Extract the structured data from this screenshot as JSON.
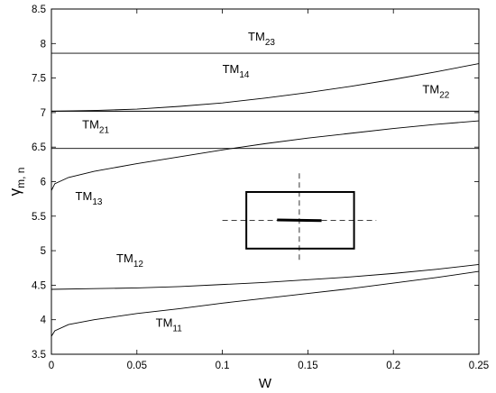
{
  "chart_data": {
    "type": "line",
    "xlabel": "W",
    "ylabel": "γ",
    "ylabel_sub": "m, n",
    "xlim": [
      0,
      0.25
    ],
    "ylim": [
      3.5,
      8.5
    ],
    "xticks": [
      0,
      0.05,
      0.1,
      0.15,
      0.2,
      0.25
    ],
    "xtick_labels": [
      "0",
      "0.05",
      "0.1",
      "0.15",
      "0.2",
      "0.25"
    ],
    "yticks": [
      3.5,
      4,
      4.5,
      5,
      5.5,
      6,
      6.5,
      7,
      7.5,
      8,
      8.5
    ],
    "ytick_labels": [
      "3.5",
      "4",
      "4.5",
      "5",
      "5.5",
      "6",
      "6.5",
      "7",
      "7.5",
      "8",
      "8.5"
    ],
    "grid": false,
    "legend": "none",
    "series": [
      {
        "x": [
          0,
          0.002,
          0.01,
          0.025,
          0.05,
          0.075,
          0.1,
          0.125,
          0.15,
          0.175,
          0.2,
          0.225,
          0.25
        ],
        "y": [
          3.76,
          3.84,
          3.93,
          4.0,
          4.09,
          4.16,
          4.24,
          4.31,
          4.38,
          4.45,
          4.53,
          4.61,
          4.7
        ]
      },
      {
        "x": [
          0,
          0.025,
          0.05,
          0.075,
          0.1,
          0.125,
          0.15,
          0.175,
          0.2,
          0.225,
          0.25
        ],
        "y": [
          4.44,
          4.45,
          4.46,
          4.48,
          4.51,
          4.54,
          4.58,
          4.62,
          4.67,
          4.73,
          4.8
        ]
      },
      {
        "x": [
          0,
          0.002,
          0.01,
          0.025,
          0.05,
          0.075,
          0.1,
          0.125,
          0.15,
          0.175,
          0.2,
          0.225,
          0.25
        ],
        "y": [
          5.87,
          5.97,
          6.06,
          6.15,
          6.26,
          6.36,
          6.46,
          6.55,
          6.63,
          6.7,
          6.77,
          6.83,
          6.88
        ]
      },
      {
        "x": [
          0,
          0.025,
          0.05,
          0.075,
          0.1,
          0.125,
          0.15,
          0.175,
          0.2,
          0.225,
          0.25
        ],
        "y": [
          7.02,
          7.03,
          7.05,
          7.09,
          7.14,
          7.21,
          7.29,
          7.38,
          7.48,
          7.59,
          7.71
        ]
      },
      {
        "x": [
          0,
          0.25
        ],
        "y": [
          7.02,
          7.02
        ]
      },
      {
        "x": [
          0,
          0.25
        ],
        "y": [
          6.48,
          6.48
        ]
      },
      {
        "x": [
          0,
          0.25
        ],
        "y": [
          7.86,
          7.86
        ]
      }
    ],
    "annotations": [
      {
        "text": "TM",
        "sub": "11",
        "x": 0.061,
        "y": 3.9
      },
      {
        "text": "TM",
        "sub": "12",
        "x": 0.038,
        "y": 4.83
      },
      {
        "text": "TM",
        "sub": "13",
        "x": 0.014,
        "y": 5.73
      },
      {
        "text": "TM",
        "sub": "21",
        "x": 0.018,
        "y": 6.77
      },
      {
        "text": "TM",
        "sub": "14",
        "x": 0.1,
        "y": 7.57
      },
      {
        "text": "TM",
        "sub": "22",
        "x": 0.217,
        "y": 7.28
      },
      {
        "text": "TM",
        "sub": "23",
        "x": 0.115,
        "y": 8.04
      }
    ],
    "inset": {
      "rect": {
        "x0": 0.114,
        "x1": 0.177,
        "y0": 5.03,
        "y1": 5.85
      },
      "crosshair_x": 0.145,
      "crosshair_y": 5.44,
      "crosshair_xrange": [
        0.1,
        0.19
      ],
      "crosshair_yrange": [
        4.82,
        6.12
      ],
      "bar": {
        "x0": 0.132,
        "x1": 0.158,
        "y0": 5.445,
        "y1": 5.435
      }
    }
  }
}
